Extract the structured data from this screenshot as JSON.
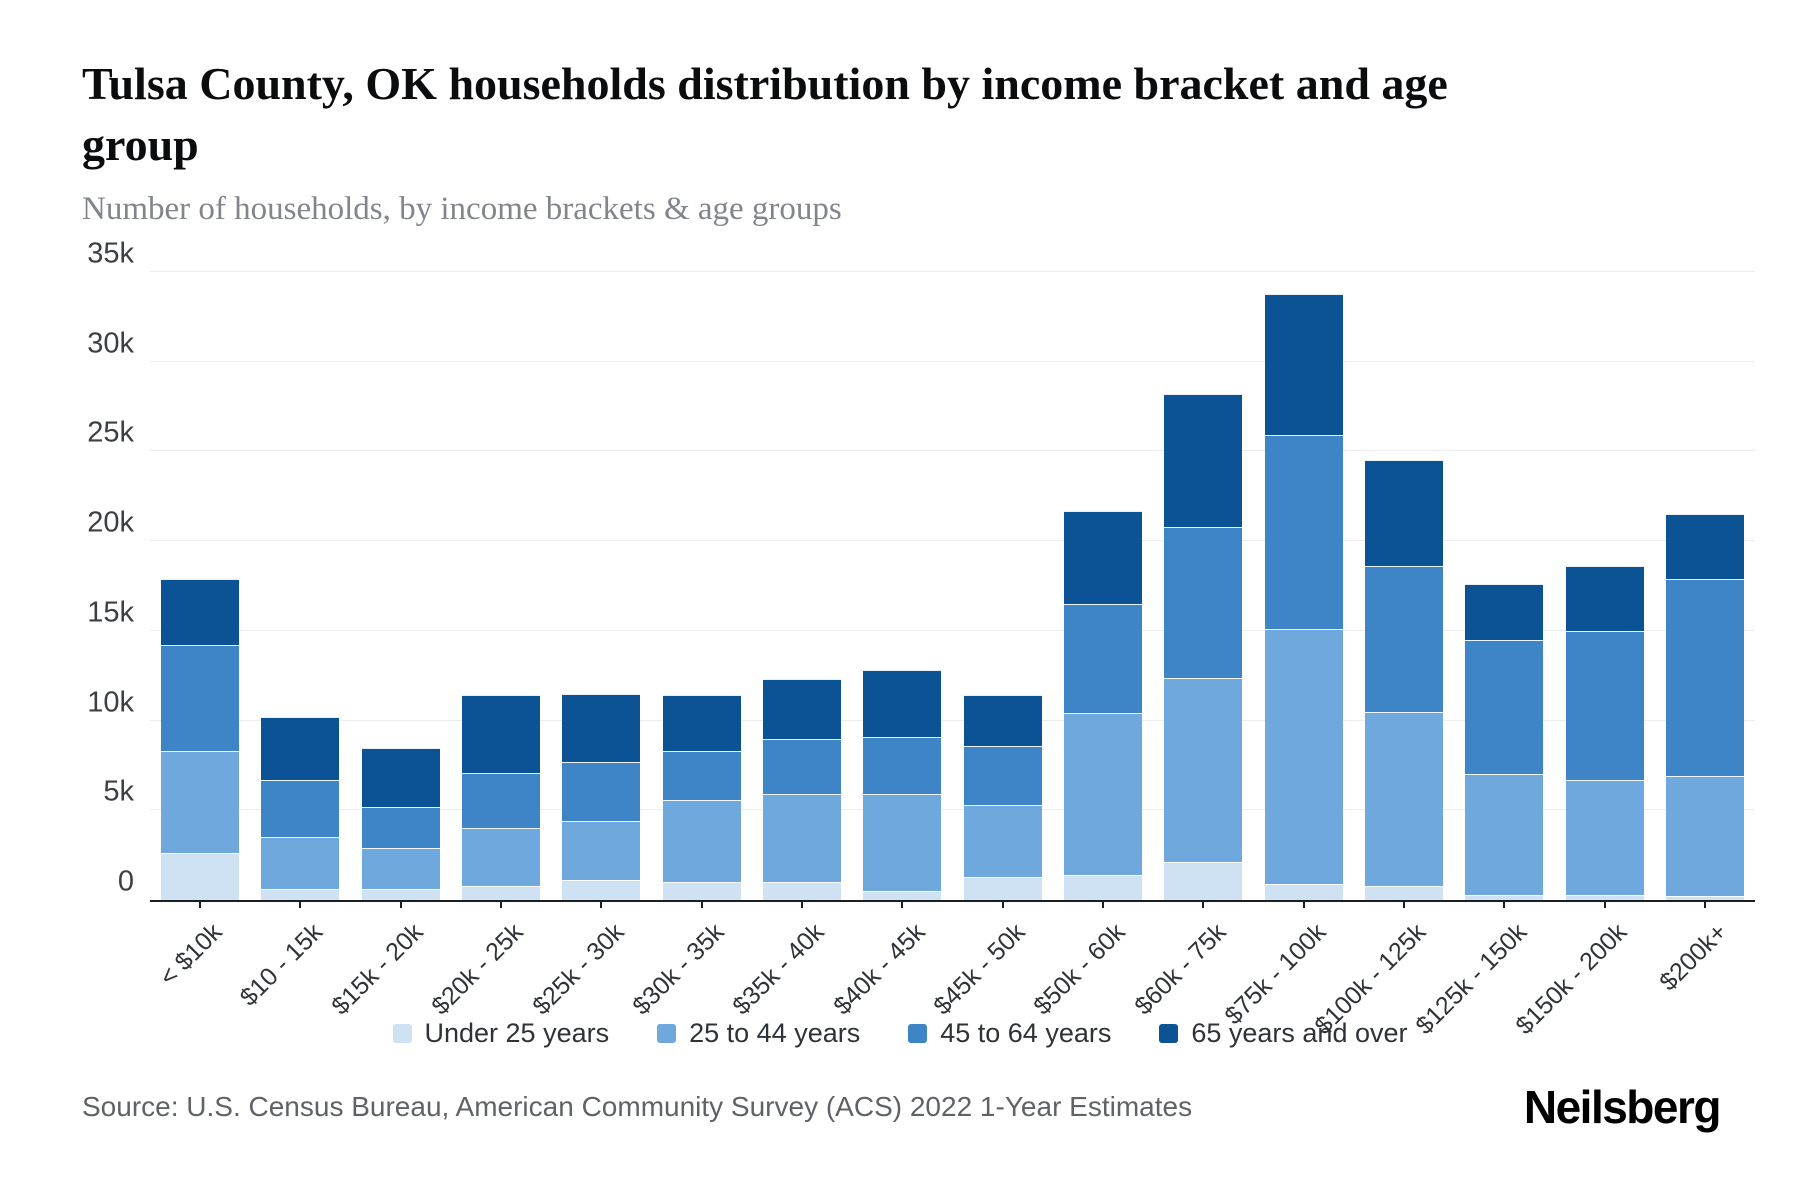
{
  "header": {
    "title": "Tulsa County, OK households distribution by income bracket and age group",
    "subtitle": "Number of households, by income brackets & age groups"
  },
  "chart_data": {
    "type": "bar",
    "stacked": true,
    "title": "Tulsa County, OK households distribution by income bracket and age group",
    "subtitle": "Number of households, by income brackets & age groups",
    "xlabel": "",
    "ylabel": "",
    "ylim": [
      0,
      35000
    ],
    "grid": true,
    "legend_position": "bottom",
    "yticks": [
      {
        "value": 0,
        "label": "0"
      },
      {
        "value": 5000,
        "label": "5k"
      },
      {
        "value": 10000,
        "label": "10k"
      },
      {
        "value": 15000,
        "label": "15k"
      },
      {
        "value": 20000,
        "label": "20k"
      },
      {
        "value": 25000,
        "label": "25k"
      },
      {
        "value": 30000,
        "label": "30k"
      },
      {
        "value": 35000,
        "label": "35k"
      }
    ],
    "categories": [
      "< $10k",
      "$10 - 15k",
      "$15k - 20k",
      "$20k - 25k",
      "$25k - 30k",
      "$30k - 35k",
      "$35k - 40k",
      "$40k - 45k",
      "$45k - 50k",
      "$50k - 60k",
      "$60k - 75k",
      "$75k - 100k",
      "$100k - 125k",
      "$125k - 150k",
      "$150k - 200k",
      "$200k+"
    ],
    "series": [
      {
        "name": "Under 25 years",
        "color": "#cfe2f3",
        "values": [
          2600,
          600,
          600,
          800,
          1100,
          1000,
          1000,
          500,
          1300,
          1400,
          2100,
          900,
          800,
          300,
          300,
          200
        ]
      },
      {
        "name": "25 to 44 years",
        "color": "#6fa8dc",
        "values": [
          5700,
          2900,
          2300,
          3200,
          3300,
          4600,
          4900,
          5400,
          4000,
          9000,
          10300,
          14200,
          9700,
          6700,
          6400,
          6700
        ]
      },
      {
        "name": "45 to 64 years",
        "color": "#3d85c6",
        "values": [
          5900,
          3200,
          2300,
          3100,
          3300,
          2700,
          3100,
          3200,
          3300,
          6100,
          8400,
          10800,
          8100,
          7500,
          8300,
          11000
        ]
      },
      {
        "name": "65 years and over",
        "color": "#0b5394",
        "values": [
          3700,
          3500,
          3300,
          4300,
          3800,
          3100,
          3300,
          3700,
          2800,
          5200,
          7400,
          7900,
          5900,
          3100,
          3600,
          3600
        ]
      }
    ]
  },
  "footer": {
    "source": "Source: U.S. Census Bureau, American Community Survey (ACS) 2022 1-Year Estimates",
    "brand": "Neilsberg"
  },
  "style": {
    "axis_color": "#1a1d21",
    "grid_color": "#ebedef",
    "background": "#ffffff"
  }
}
